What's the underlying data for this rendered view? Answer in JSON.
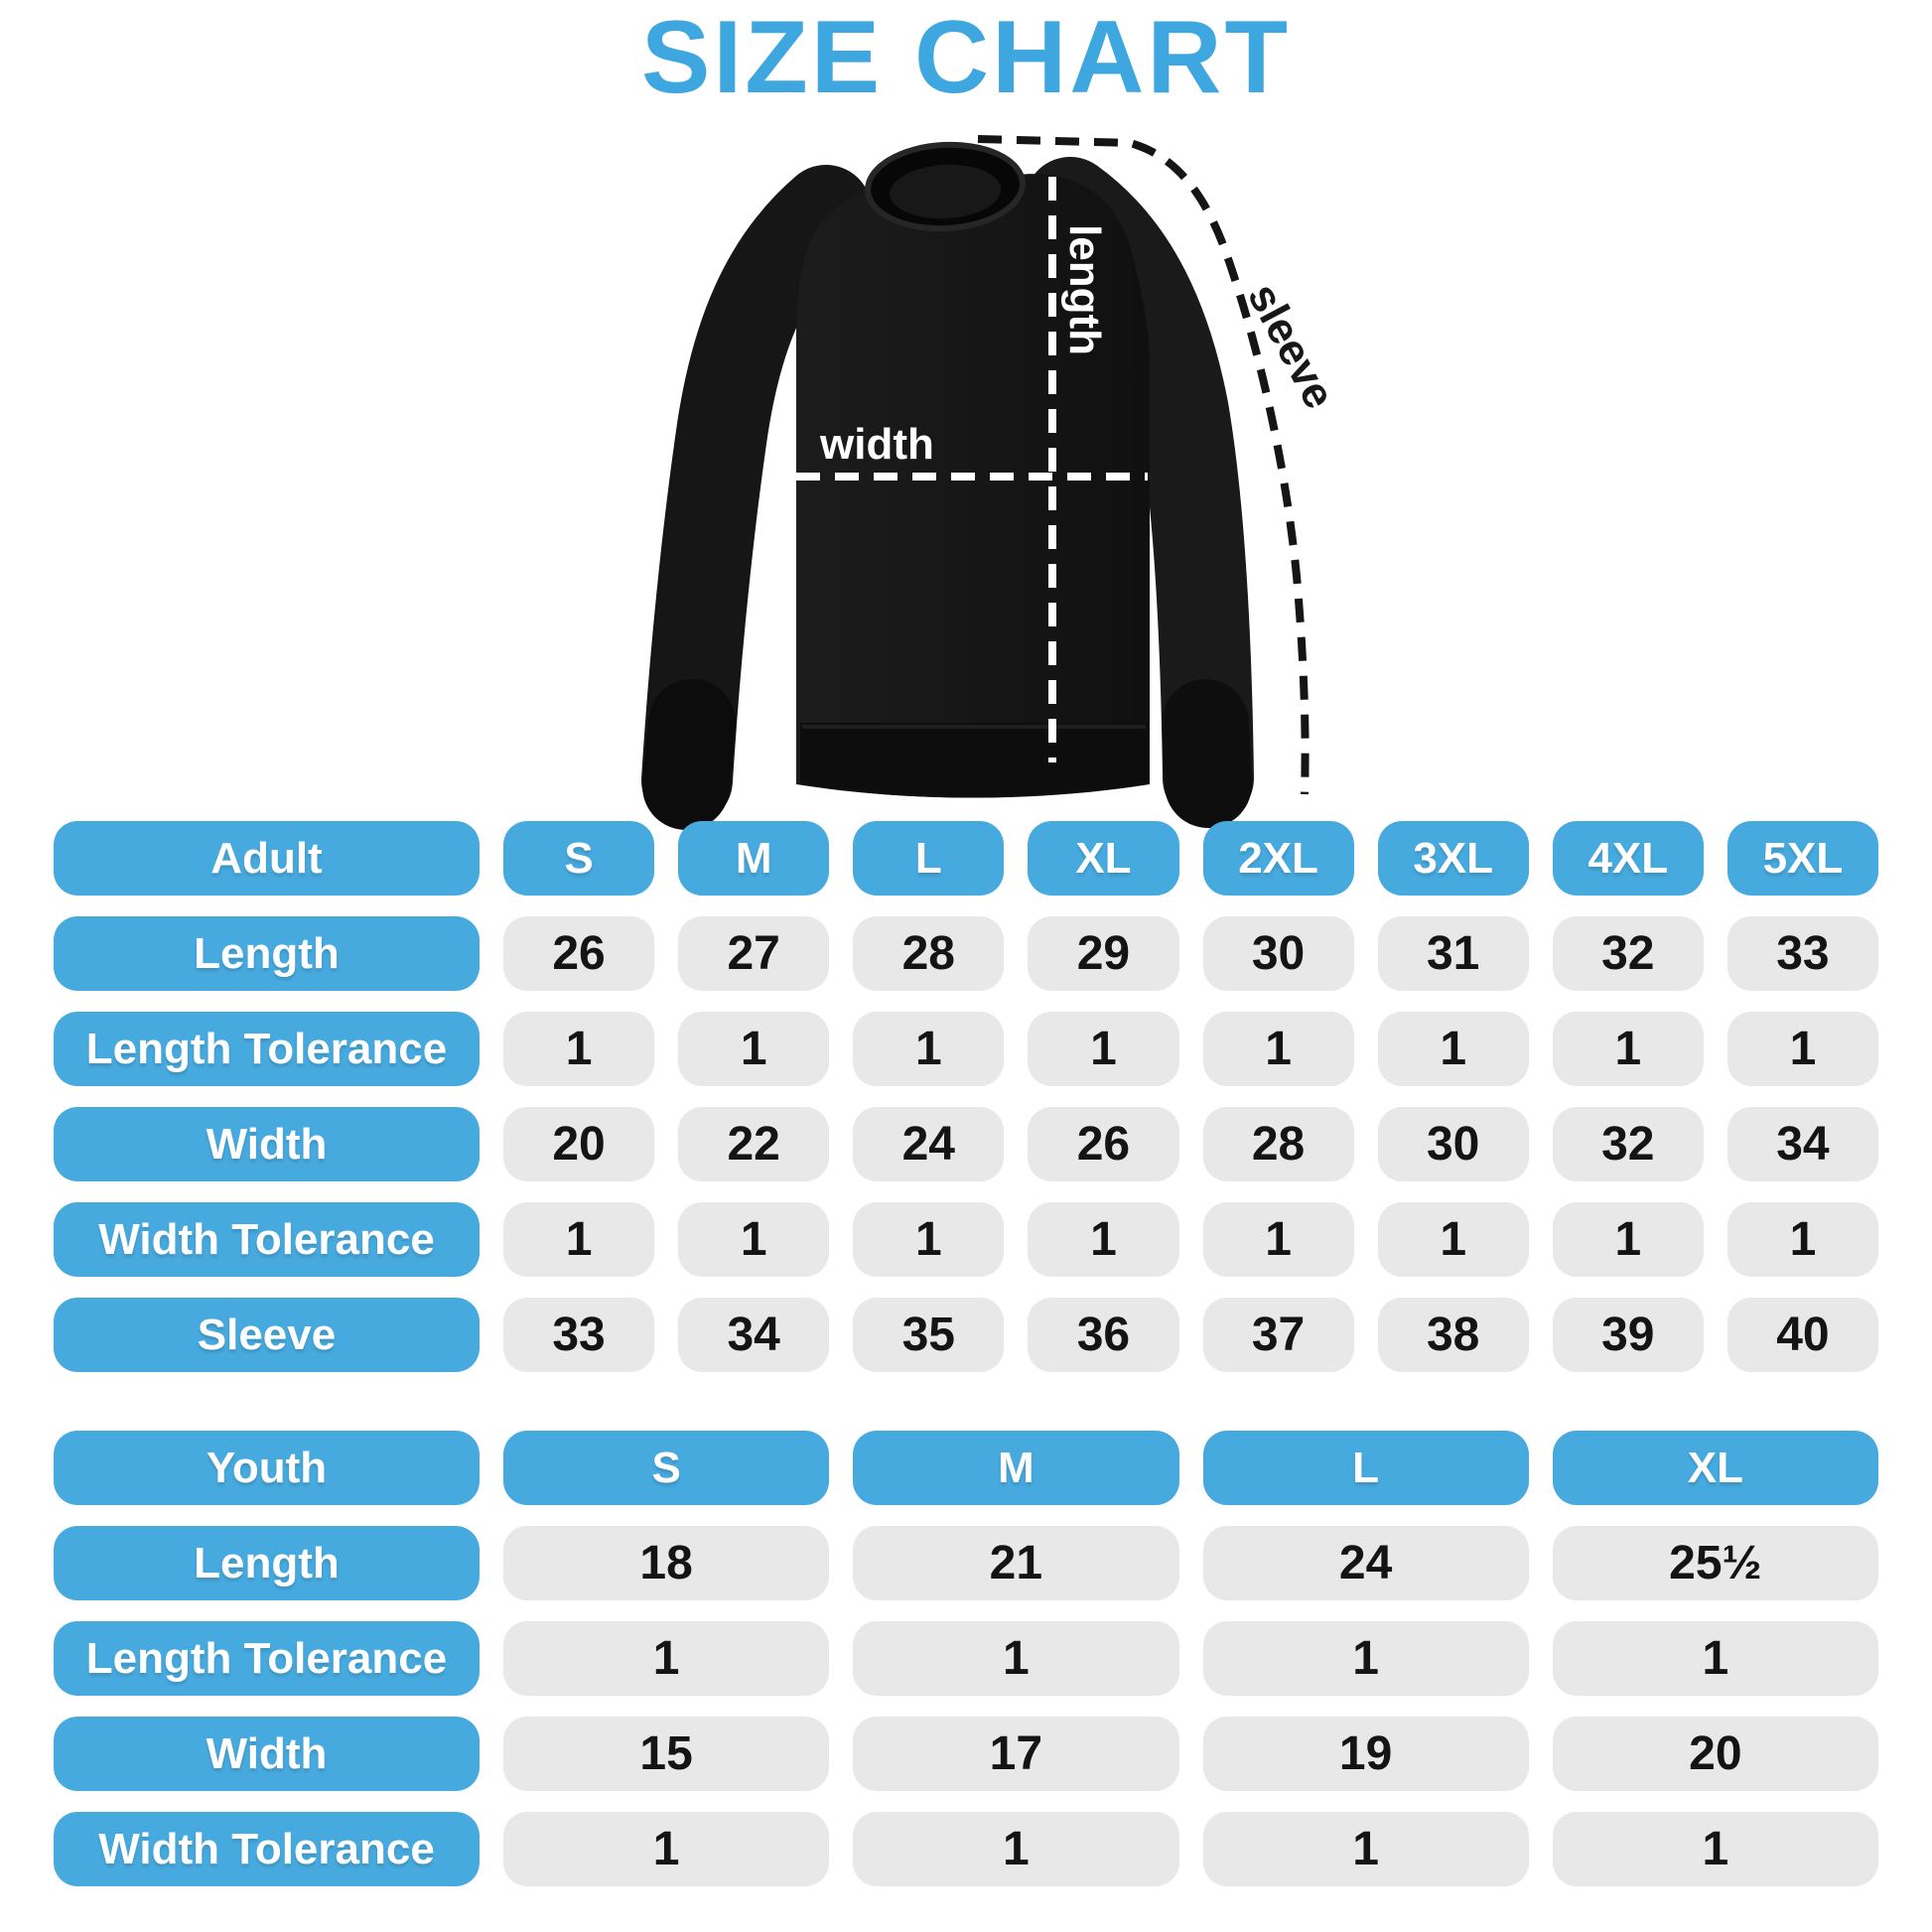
{
  "title": "SIZE CHART",
  "colors": {
    "title_blue": "#3fa7df",
    "pill_blue": "#47aadf",
    "cell_gray": "#e8e8e8",
    "cell_text": "#141414",
    "garment_black": "#141414",
    "measure_line_white": "#ffffff",
    "measure_line_black": "#151515"
  },
  "diagram": {
    "length_label": "length",
    "width_label": "width",
    "sleeve_label": "sleeve"
  },
  "chart_data": [
    {
      "type": "table",
      "title": "Adult",
      "columns": [
        "S",
        "M",
        "L",
        "XL",
        "2XL",
        "3XL",
        "4XL",
        "5XL"
      ],
      "rows": [
        {
          "label": "Length",
          "values": [
            "26",
            "27",
            "28",
            "29",
            "30",
            "31",
            "32",
            "33"
          ]
        },
        {
          "label": "Length Tolerance",
          "values": [
            "1",
            "1",
            "1",
            "1",
            "1",
            "1",
            "1",
            "1"
          ]
        },
        {
          "label": "Width",
          "values": [
            "20",
            "22",
            "24",
            "26",
            "28",
            "30",
            "32",
            "34"
          ]
        },
        {
          "label": "Width Tolerance",
          "values": [
            "1",
            "1",
            "1",
            "1",
            "1",
            "1",
            "1",
            "1"
          ]
        },
        {
          "label": "Sleeve",
          "values": [
            "33",
            "34",
            "35",
            "36",
            "37",
            "38",
            "39",
            "40"
          ]
        }
      ]
    },
    {
      "type": "table",
      "title": "Youth",
      "columns": [
        "S",
        "M",
        "L",
        "XL"
      ],
      "rows": [
        {
          "label": "Length",
          "values": [
            "18",
            "21",
            "24",
            "25½"
          ]
        },
        {
          "label": "Length Tolerance",
          "values": [
            "1",
            "1",
            "1",
            "1"
          ]
        },
        {
          "label": "Width",
          "values": [
            "15",
            "17",
            "19",
            "20"
          ]
        },
        {
          "label": "Width Tolerance",
          "values": [
            "1",
            "1",
            "1",
            "1"
          ]
        }
      ]
    }
  ]
}
